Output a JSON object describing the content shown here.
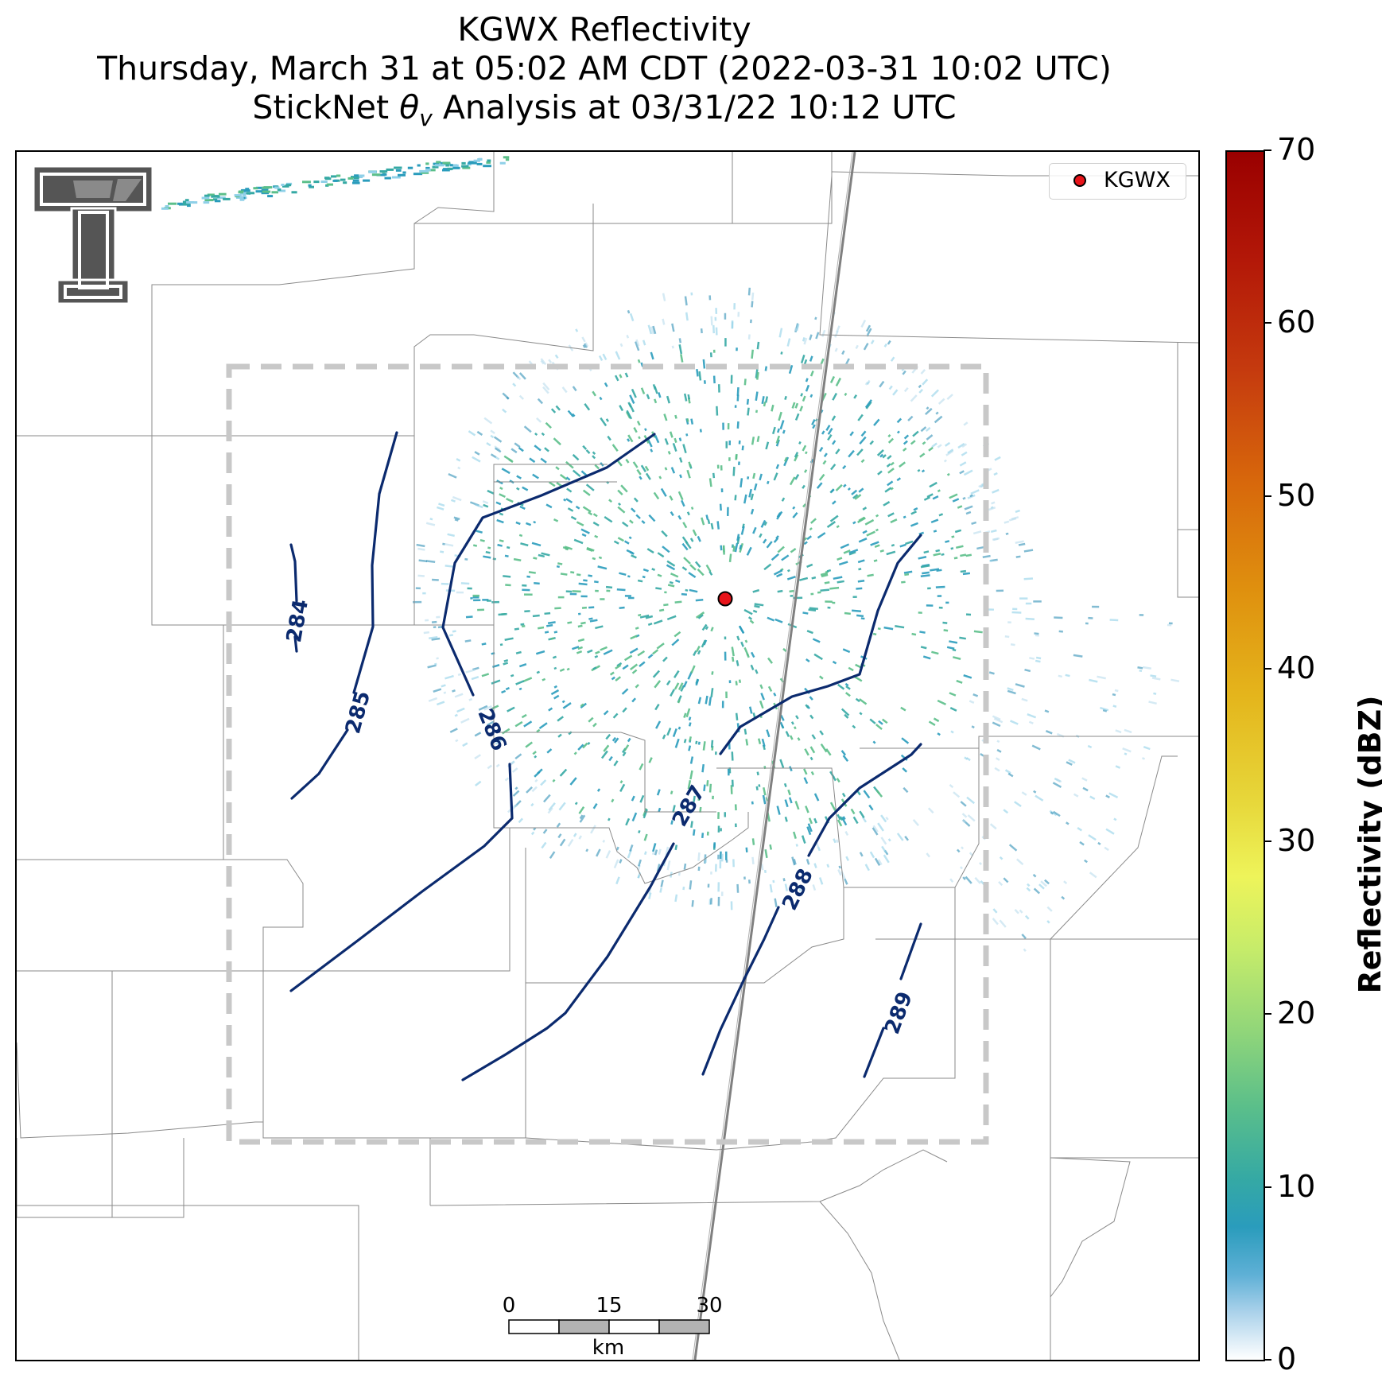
{
  "title": {
    "line1": "KGWX Reflectivity",
    "line2": "Thursday, March 31 at 05:02 AM CDT (2022-03-31 10:02 UTC)",
    "line3_prefix": "StickNet ",
    "line3_symbol": "θ",
    "line3_subscript": "v",
    "line3_suffix": " Analysis at 03/31/22 10:12 UTC"
  },
  "legend": {
    "label": "KGWX",
    "marker_color": "#e8141a"
  },
  "colorbar": {
    "label": "Reflectivity (dBZ)",
    "ticks": [
      "0",
      "10",
      "20",
      "30",
      "40",
      "50",
      "60",
      "70"
    ],
    "range": [
      0,
      70
    ]
  },
  "scalebar": {
    "ticks": [
      "0",
      "15",
      "30"
    ],
    "unit": "km"
  },
  "contours": {
    "color": "#0b2a6e",
    "levels": [
      {
        "label": "284"
      },
      {
        "label": "285"
      },
      {
        "label": "286"
      },
      {
        "label": "287"
      },
      {
        "label": "288"
      },
      {
        "label": "289"
      }
    ]
  },
  "analysis_box": {
    "style": "dashed",
    "color": "#c8c8c8"
  },
  "colors": {
    "county_lines": "#8a8a8a",
    "interstate": "#808080",
    "echo_teal": "#2a9cbc"
  }
}
